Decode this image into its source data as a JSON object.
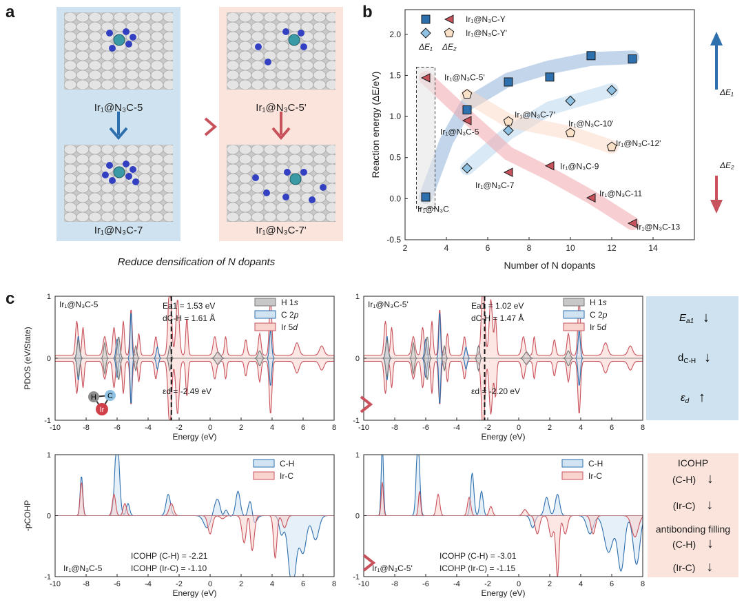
{
  "panel_labels": {
    "a": "a",
    "b": "b",
    "c": "c"
  },
  "panel_a": {
    "structures": {
      "top_left": "Ir₁@N₃C-5",
      "bottom_left": "Ir₁@N₃C-7",
      "top_right": "Ir₁@N₃C-5'",
      "bottom_right": "Ir₁@N₃C-7'"
    },
    "caption": "Reduce densification of N dopants",
    "colors": {
      "blue_panel": "#cfe2ef",
      "pink_panel": "#fbe4dc",
      "blue_arrow": "#2e6fae",
      "red_arrow": "#c8525c"
    }
  },
  "chart_data": [
    {
      "type": "scatter",
      "panel": "b",
      "title": "",
      "xlabel": "Number of N dopants",
      "ylabel": "Reaction energy (ΔE/eV)",
      "xlim": [
        2,
        16
      ],
      "ylim": [
        -0.5,
        2.3
      ],
      "xticks": [
        "2",
        "4",
        "6",
        "8",
        "10",
        "12",
        "14"
      ],
      "yticks": [
        "-0.5",
        "0.0",
        "0.5",
        "1.0",
        "1.5",
        "2.0"
      ],
      "legend": [
        {
          "label": "Ir₁@N₃C-Y",
          "markers": [
            "square",
            "triangle"
          ]
        },
        {
          "label": "Ir₁@N₃C-Y'",
          "markers": [
            "diamond",
            "pentagon"
          ]
        }
      ],
      "legend_sub": [
        "ΔE₁",
        "ΔE₂"
      ],
      "series": [
        {
          "name": "ΔE1 Ir1@N3C-Y",
          "marker": "square",
          "color": "#2e6fae",
          "x": [
            3,
            5,
            7,
            9,
            11,
            13
          ],
          "y": [
            0.02,
            1.08,
            1.42,
            1.48,
            1.74,
            1.7
          ]
        },
        {
          "name": "ΔE2 Ir1@N3C-Y",
          "marker": "triangle",
          "color": "#c8525c",
          "x": [
            3,
            5,
            7,
            9,
            11,
            13
          ],
          "y": [
            1.47,
            0.95,
            0.32,
            0.4,
            0.01,
            -0.3
          ]
        },
        {
          "name": "ΔE1 Ir1@N3C-Y'",
          "marker": "diamond",
          "color": "#8fc1e3",
          "x": [
            5,
            7,
            10,
            12
          ],
          "y": [
            0.37,
            0.83,
            1.19,
            1.32
          ]
        },
        {
          "name": "ΔE2 Ir1@N3C-Y'",
          "marker": "pentagon",
          "color": "#fbe0c8",
          "x": [
            5,
            7,
            10,
            12
          ],
          "y": [
            1.27,
            0.94,
            0.8,
            0.63
          ]
        }
      ],
      "point_labels": [
        {
          "text": "Ir₁@N₃C",
          "x": 2.6,
          "y": -0.16
        },
        {
          "text": "Ir₁@N₃C-5'",
          "x": 3.9,
          "y": 1.44
        },
        {
          "text": "Ir₁@N₃C-5",
          "x": 3.7,
          "y": 0.78
        },
        {
          "text": "Ir₁@N₃C-7'",
          "x": 7.3,
          "y": 0.99
        },
        {
          "text": "Ir₁@N₃C-7",
          "x": 5.4,
          "y": 0.13
        },
        {
          "text": "Ir₁@N₃C-10'",
          "x": 9.9,
          "y": 0.88
        },
        {
          "text": "Ir₁@N₃C-9",
          "x": 9.5,
          "y": 0.36
        },
        {
          "text": "Ir₁@N₃C-12'",
          "x": 12.2,
          "y": 0.64
        },
        {
          "text": "Ir₁@N₃C-11",
          "x": 11.4,
          "y": 0.03
        },
        {
          "text": "Ir₁@N₃C-13",
          "x": 13.2,
          "y": -0.38
        }
      ],
      "arrow_labels": [
        "ΔE₁",
        "ΔE₂"
      ]
    },
    {
      "type": "line",
      "panel": "c-pdos-left",
      "title": "Ir₁@N₃C-5",
      "xlabel": "Energy (eV)",
      "ylabel": "PDOS (eV/State)",
      "xlim": [
        -10,
        8
      ],
      "ylim": [
        -1,
        1
      ],
      "xticks": [
        "-10",
        "-8",
        "-6",
        "-4",
        "-2",
        "0",
        "2",
        "4",
        "6",
        "8"
      ],
      "yticks": [
        "-1",
        "0",
        "1"
      ],
      "legend": [
        "H 1s",
        "C 2p",
        "Ir 5d"
      ],
      "fermi_line_x": -2.5,
      "annotations": {
        "ea1": "Ea1 = 1.53 eV",
        "dch": "dC-H = 1.61 Å",
        "ed": "εd = -2.49 eV"
      }
    },
    {
      "type": "line",
      "panel": "c-pdos-right",
      "title": "Ir₁@N₃C-5'",
      "xlabel": "Energy (eV)",
      "ylabel": "",
      "xlim": [
        -10,
        8
      ],
      "ylim": [
        -1,
        1
      ],
      "xticks": [
        "-10",
        "-8",
        "-6",
        "-4",
        "-2",
        "0",
        "2",
        "4",
        "6",
        "8"
      ],
      "yticks": [
        "-1",
        "0",
        "1"
      ],
      "legend": [
        "H 1s",
        "C 2p",
        "Ir 5d"
      ],
      "fermi_line_x": -2.2,
      "annotations": {
        "ea1": "Ea1 = 1.02 eV",
        "dch": "dC-H = 1.47 Å",
        "ed": "εd = -2.20 eV"
      }
    },
    {
      "type": "line",
      "panel": "c-cohp-left",
      "title": "Ir₁@N₃C-5",
      "xlabel": "Energy (eV)",
      "ylabel": "-pCOHP",
      "xlim": [
        -10,
        8
      ],
      "ylim": [
        -1,
        1
      ],
      "xticks": [
        "-10",
        "-8",
        "-6",
        "-4",
        "-2",
        "0",
        "2",
        "4",
        "6",
        "8"
      ],
      "yticks": [
        "-1",
        "0",
        "1"
      ],
      "legend": [
        "C-H",
        "Ir-C"
      ],
      "annotations": {
        "icohp_ch": "ICOHP (C-H) = -2.21",
        "icohp_irc": "ICOHP (Ir-C) = -1.10"
      }
    },
    {
      "type": "line",
      "panel": "c-cohp-right",
      "title": "Ir₁@N₃C-5'",
      "xlabel": "Energy (eV)",
      "ylabel": "",
      "xlim": [
        -10,
        8
      ],
      "ylim": [
        -1,
        1
      ],
      "xticks": [
        "-10",
        "-8",
        "-6",
        "-4",
        "-2",
        "0",
        "2",
        "4",
        "6",
        "8"
      ],
      "yticks": [
        "-1",
        "0",
        "1"
      ],
      "legend": [
        "C-H",
        "Ir-C"
      ],
      "annotations": {
        "icohp_ch": "ICOHP (C-H) = -3.01",
        "icohp_irc": "ICOHP (Ir-C) = -1.15"
      }
    }
  ],
  "side_panel_top": {
    "rows": [
      {
        "label": "Ea1",
        "arrow": "↓"
      },
      {
        "label": "dC-H",
        "arrow": "↓"
      },
      {
        "label": "εd",
        "arrow": "↑"
      }
    ]
  },
  "side_panel_bottom": {
    "title": "ICOHP",
    "rows": [
      {
        "label": "(C-H)",
        "arrow": "↓"
      },
      {
        "label": "(Ir-C)",
        "arrow": "↓"
      }
    ],
    "subtitle": "antibonding filling",
    "rows2": [
      {
        "label": "(C-H)",
        "arrow": "↓"
      },
      {
        "label": "(Ir-C)",
        "arrow": "↓"
      }
    ]
  },
  "molecule_labels": {
    "h": "H",
    "c": "C",
    "ir": "Ir"
  },
  "colors": {
    "blue": "#2e6fae",
    "red": "#c8525c",
    "light_blue": "#8fc1e3",
    "light_red": "#f2b8b2",
    "grey": "#9a9a9a",
    "blue_fill": "#cfe3f2",
    "red_fill": "#f9d4cf"
  }
}
